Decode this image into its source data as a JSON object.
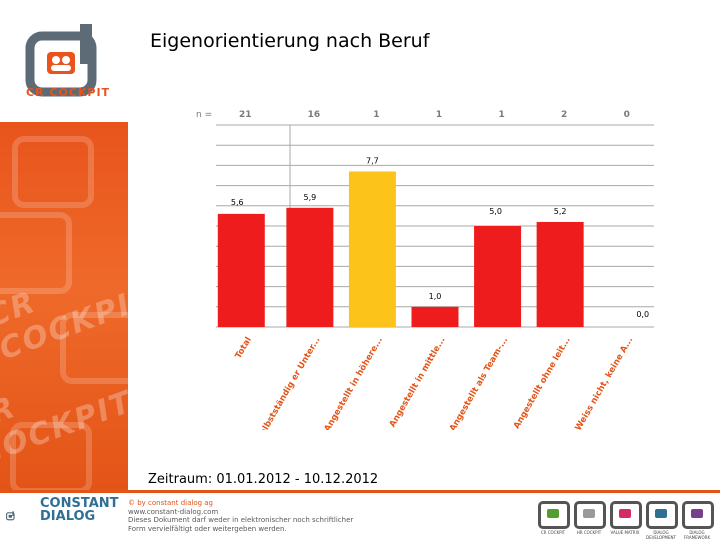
{
  "page": {
    "title": "Eigenorientierung nach Beruf",
    "period": "Zeitraum: 01.01.2012 - 10.12.2012"
  },
  "branding": {
    "logo_text": "CR COCKPIT",
    "watermark": "CR COCKPIT",
    "footer_brand_line1": "CONSTANT",
    "footer_brand_line2": "DIALOG",
    "footer_note_line1": "© by constant dialog ag",
    "footer_note_line2": "www.constant-dialog.com",
    "footer_note_line3": "Dieses Dokument darf weder in elektronischer noch schriftlicher",
    "footer_note_line4": "Form vervielfältigt oder weitergeben werden.",
    "mini_logos": [
      {
        "caption": "CR COCKPIT",
        "color": "#4f9e2f"
      },
      {
        "caption": "HR COCKPIT",
        "color": "#9a9a9a"
      },
      {
        "caption": "VALUE MATRIX",
        "color": "#d62a63"
      },
      {
        "caption": "DIALOG DEVELOPMENT",
        "color": "#2f6f93"
      },
      {
        "caption": "DIALOG FRAMEWORK",
        "color": "#7a3e8e"
      }
    ],
    "colors": {
      "orange": "#e8541c",
      "bar_red": "#ee1c1c",
      "bar_yellow": "#fcc31a"
    }
  },
  "chart_data": {
    "type": "bar",
    "title": "Eigenorientierung nach Beruf",
    "n_label": "n =",
    "categories": [
      "Total",
      "selbstständig er Unter...",
      "Angestellt in höhere...",
      "Angestellt in mittle...",
      "Angestellt als Team-...",
      "Angestellt ohne leit...",
      "Weiss nicht, keine A..."
    ],
    "n_values": [
      "21",
      "16",
      "1",
      "1",
      "1",
      "2",
      "0"
    ],
    "values": [
      5.6,
      5.9,
      7.7,
      1.0,
      5.0,
      5.2,
      0.0
    ],
    "value_labels": [
      "5,6",
      "5,9",
      "7,7",
      "1,0",
      "5,0",
      "5,2",
      "0,0"
    ],
    "bar_colors": [
      "#ee1c1c",
      "#ee1c1c",
      "#fcc31a",
      "#ee1c1c",
      "#ee1c1c",
      "#ee1c1c",
      "#ee1c1c"
    ],
    "ylim": [
      0,
      10
    ],
    "grid": true,
    "xlabel": "",
    "ylabel": ""
  }
}
